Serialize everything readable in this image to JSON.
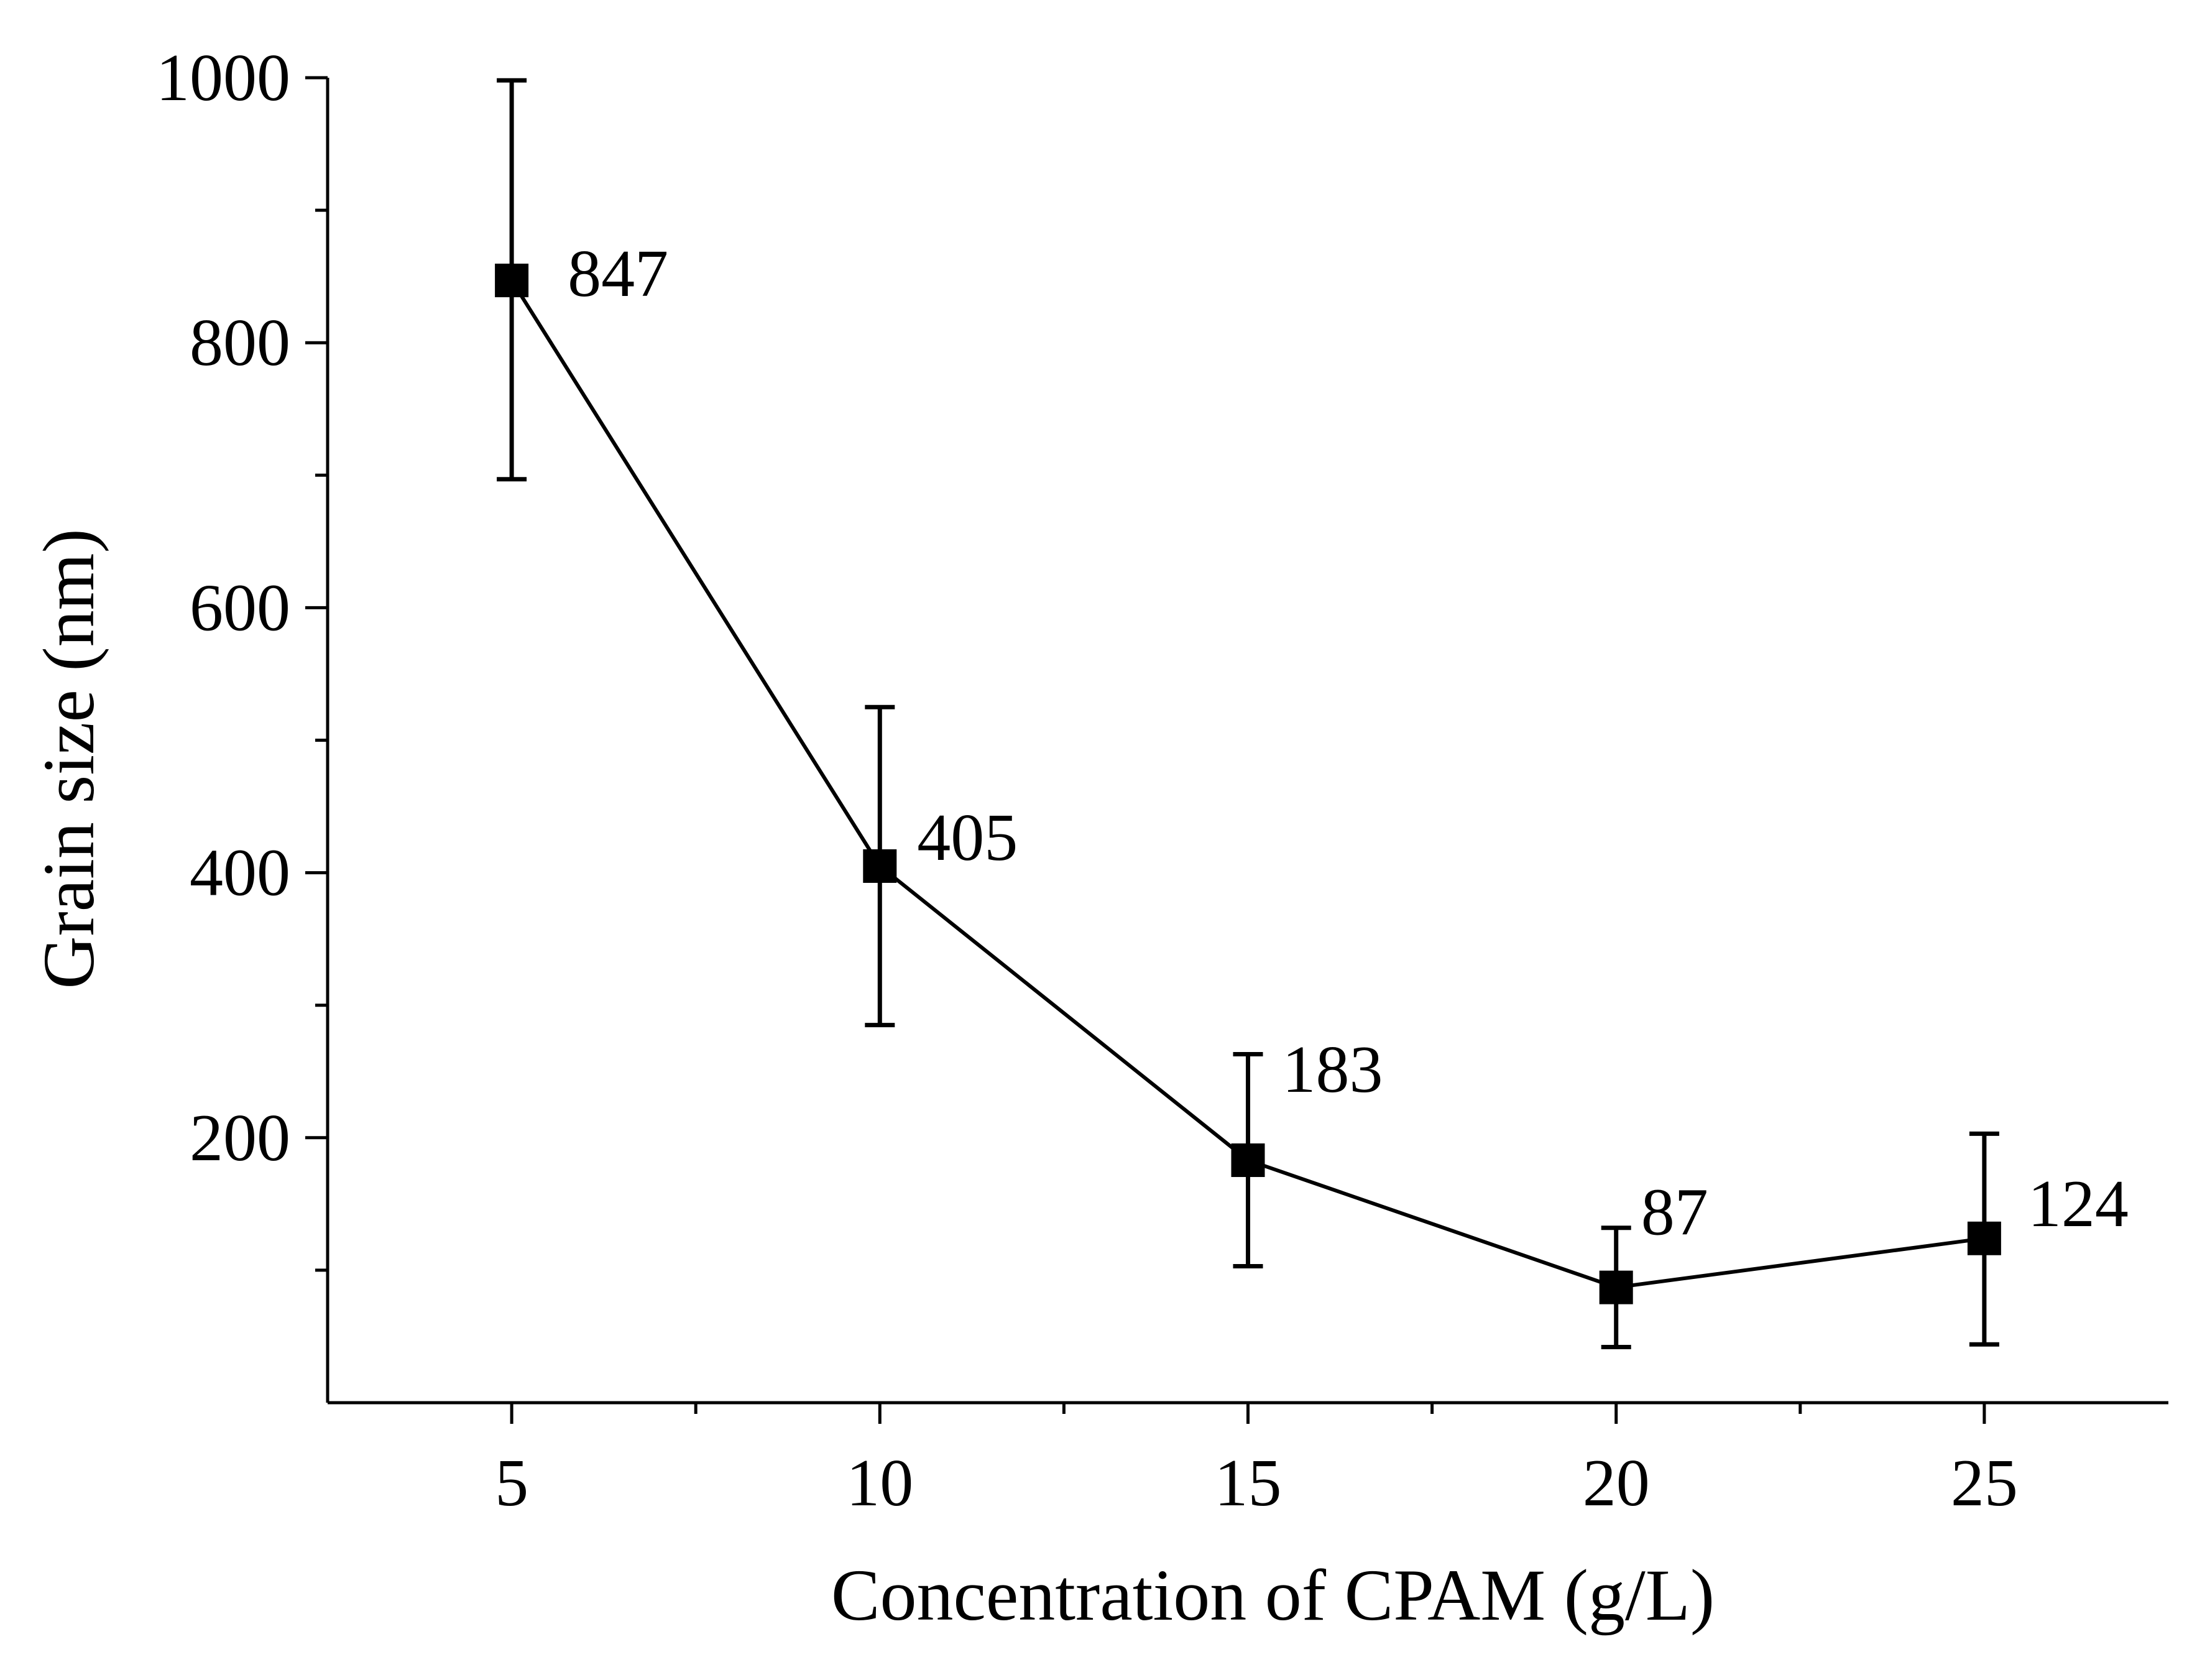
{
  "chart_data": {
    "type": "line",
    "title": "",
    "xlabel": "Concentration of CPAM (g/L)",
    "ylabel": "Grain size (nm)",
    "xlim": [
      2.5,
      27.5
    ],
    "ylim": [
      0,
      1000
    ],
    "x_ticks": [
      5,
      10,
      15,
      20,
      25
    ],
    "x_minor_ticks": [
      7.5,
      12.5,
      17.5,
      22.5
    ],
    "y_ticks": [
      200,
      400,
      600,
      800,
      1000
    ],
    "y_minor_ticks": [
      100,
      300,
      500,
      700,
      900
    ],
    "grid": false,
    "legend": "none",
    "series": [
      {
        "name": "Grain size",
        "marker": "square",
        "color": "#000000",
        "x": [
          5,
          10,
          15,
          20,
          25
        ],
        "values": [
          847,
          405,
          183,
          87,
          124
        ],
        "error_high": [
          998,
          525,
          263,
          132,
          203
        ],
        "error_low": [
          697,
          285,
          103,
          42,
          44
        ],
        "data_labels": [
          "847",
          "405",
          "183",
          "87",
          "124"
        ]
      }
    ]
  }
}
